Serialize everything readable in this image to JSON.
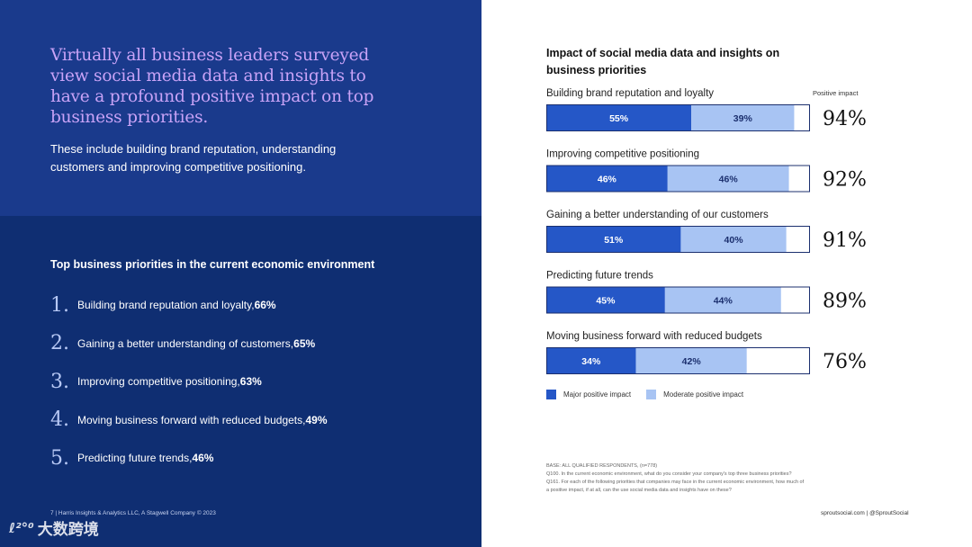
{
  "left": {
    "headline": "Virtually all business leaders surveyed view social media data and insights to have a profound positive impact on top business priorities.",
    "subtext": "These include building brand reputation, understanding customers and improving competitive positioning.",
    "priorities_title": "Top business priorities in the current economic environment",
    "priorities": [
      {
        "num": "1.",
        "label": "Building brand reputation and loyalty, ",
        "pct": "66%"
      },
      {
        "num": "2.",
        "label": "Gaining a better understanding of customers, ",
        "pct": "65%"
      },
      {
        "num": "3.",
        "label": "Improving competitive positioning, ",
        "pct": "63%"
      },
      {
        "num": "4.",
        "label": "Moving business forward with reduced budgets, ",
        "pct": "49%"
      },
      {
        "num": "5.",
        "label": "Predicting future trends, ",
        "pct": "46%"
      }
    ],
    "footer": "7  |  Harris Insights & Analytics LLC, A Stagwell Company © 2023"
  },
  "watermark": {
    "logo": "ℓ²°⁰",
    "text": "大数跨境"
  },
  "colors": {
    "major": "#2557c7",
    "moderate": "#a8c4f3",
    "left_top_bg": "#1a3a8c",
    "left_bottom_bg": "#0f2e72",
    "headline": "#c9a3f7"
  },
  "chart_data": {
    "type": "bar",
    "orientation": "horizontal-stacked",
    "title": "Impact of social media data and insights on business priorities",
    "total_label": "Positive impact",
    "categories": [
      "Building brand reputation and loyalty",
      "Improving competitive positioning",
      "Gaining a better understanding of our customers",
      "Predicting future trends",
      "Moving business forward with reduced budgets"
    ],
    "series": [
      {
        "name": "Major positive impact",
        "values": [
          55,
          46,
          51,
          45,
          34
        ]
      },
      {
        "name": "Moderate positive impact",
        "values": [
          39,
          46,
          40,
          44,
          42
        ]
      }
    ],
    "totals": [
      "94%",
      "92%",
      "91%",
      "89%",
      "76%"
    ],
    "xlim": [
      0,
      100
    ],
    "legend": [
      "Major positive impact",
      "Moderate positive impact"
    ]
  },
  "notes": [
    "BASE: ALL QUALIFIED RESPONDENTS, (n=778)",
    "Q100. In the current economic environment, what do you consider your company's top three business priorities?",
    "Q161. For each of the following priorities that companies may face in the current economic environment, how much of a positive impact, if at all, can the use social media data and insights have on these?"
  ],
  "footer_right": "sproutsocial.com   |   @SproutSocial"
}
